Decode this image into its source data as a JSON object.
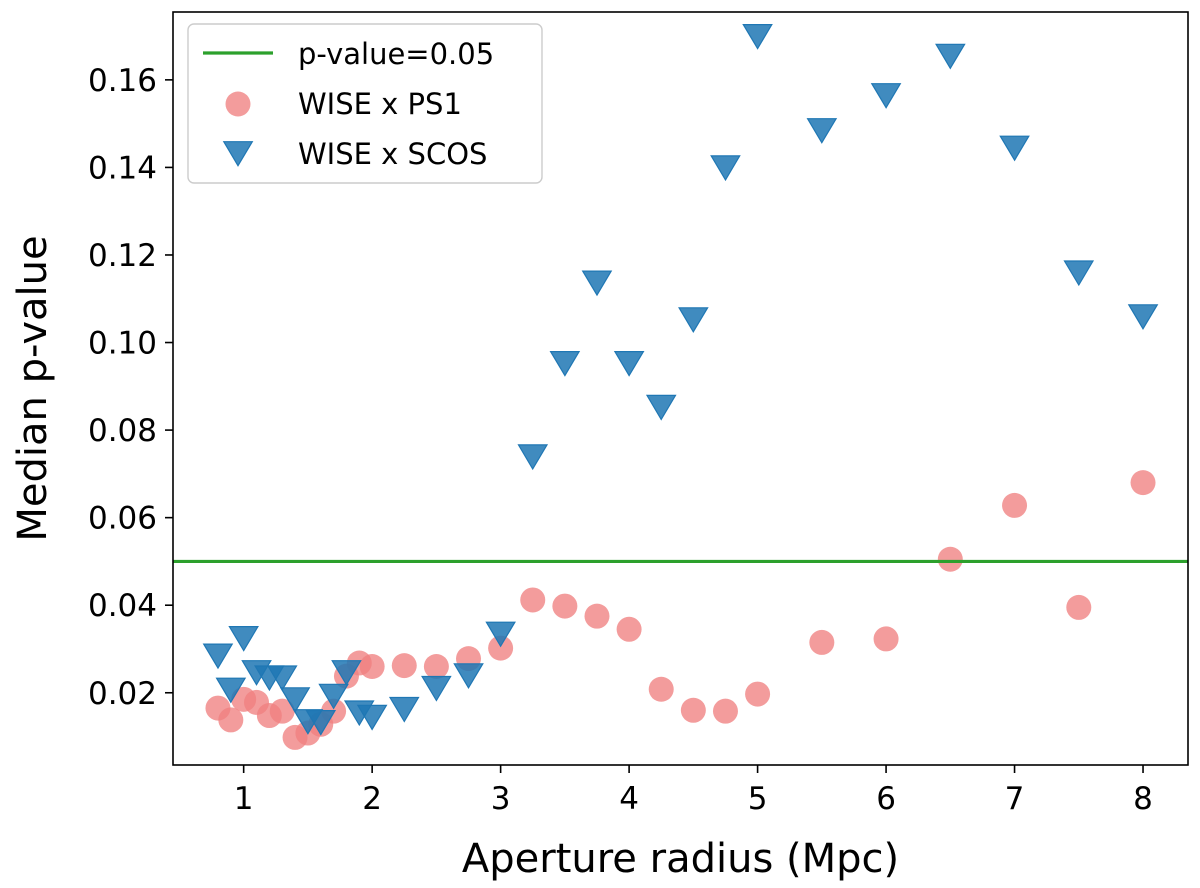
{
  "chart_data": {
    "type": "scatter",
    "title": "",
    "xlabel": "Aperture radius (Mpc)",
    "ylabel": "Median p-value",
    "xlim": [
      0.45,
      8.35
    ],
    "ylim": [
      0.0035,
      0.1755
    ],
    "xticks": [
      1,
      2,
      3,
      4,
      5,
      6,
      7,
      8
    ],
    "xtick_labels": [
      "1",
      "2",
      "3",
      "4",
      "5",
      "6",
      "7",
      "8"
    ],
    "yticks": [
      0.02,
      0.04,
      0.06,
      0.08,
      0.1,
      0.12,
      0.14,
      0.16
    ],
    "ytick_labels": [
      "0.02",
      "0.04",
      "0.06",
      "0.08",
      "0.10",
      "0.12",
      "0.14",
      "0.16"
    ],
    "grid": false,
    "legend_position": "top-left",
    "reference_line": {
      "label": "p-value=0.05",
      "y": 0.05,
      "color": "#2ca02c"
    },
    "series": [
      {
        "name": "WISE x PS1",
        "marker": "circle",
        "color": "#f08080",
        "x": [
          0.8,
          0.9,
          1.0,
          1.1,
          1.2,
          1.3,
          1.4,
          1.5,
          1.6,
          1.7,
          1.8,
          1.9,
          2.0,
          2.25,
          2.5,
          2.75,
          3.0,
          3.25,
          3.5,
          3.75,
          4.0,
          4.25,
          4.5,
          4.75,
          5.0,
          5.5,
          6.0,
          6.5,
          7.0,
          7.5,
          8.0
        ],
        "y": [
          0.0165,
          0.0138,
          0.0185,
          0.0178,
          0.0148,
          0.0158,
          0.0098,
          0.0108,
          0.0128,
          0.0158,
          0.0238,
          0.0268,
          0.026,
          0.0262,
          0.026,
          0.0278,
          0.0302,
          0.0412,
          0.0398,
          0.0375,
          0.0345,
          0.0208,
          0.016,
          0.0158,
          0.0197,
          0.0315,
          0.0323,
          0.0505,
          0.0628,
          0.0395,
          0.068
        ]
      },
      {
        "name": "WISE x SCOS",
        "marker": "triangle-down",
        "color": "#1f77b4",
        "x": [
          0.8,
          0.9,
          1.0,
          1.1,
          1.2,
          1.3,
          1.4,
          1.5,
          1.6,
          1.7,
          1.8,
          1.9,
          2.0,
          2.25,
          2.5,
          2.75,
          3.0,
          3.25,
          3.5,
          3.75,
          4.0,
          4.25,
          4.5,
          4.75,
          5.0,
          5.5,
          6.0,
          6.5,
          7.0,
          7.5,
          8.0
        ],
        "y": [
          0.029,
          0.0212,
          0.033,
          0.0252,
          0.024,
          0.024,
          0.019,
          0.014,
          0.0138,
          0.0198,
          0.0252,
          0.016,
          0.015,
          0.0168,
          0.0216,
          0.0245,
          0.034,
          0.0745,
          0.0958,
          0.1142,
          0.0958,
          0.0858,
          0.1058,
          0.1405,
          0.1705,
          0.149,
          0.157,
          0.166,
          0.145,
          0.1165,
          0.1065
        ]
      }
    ]
  }
}
